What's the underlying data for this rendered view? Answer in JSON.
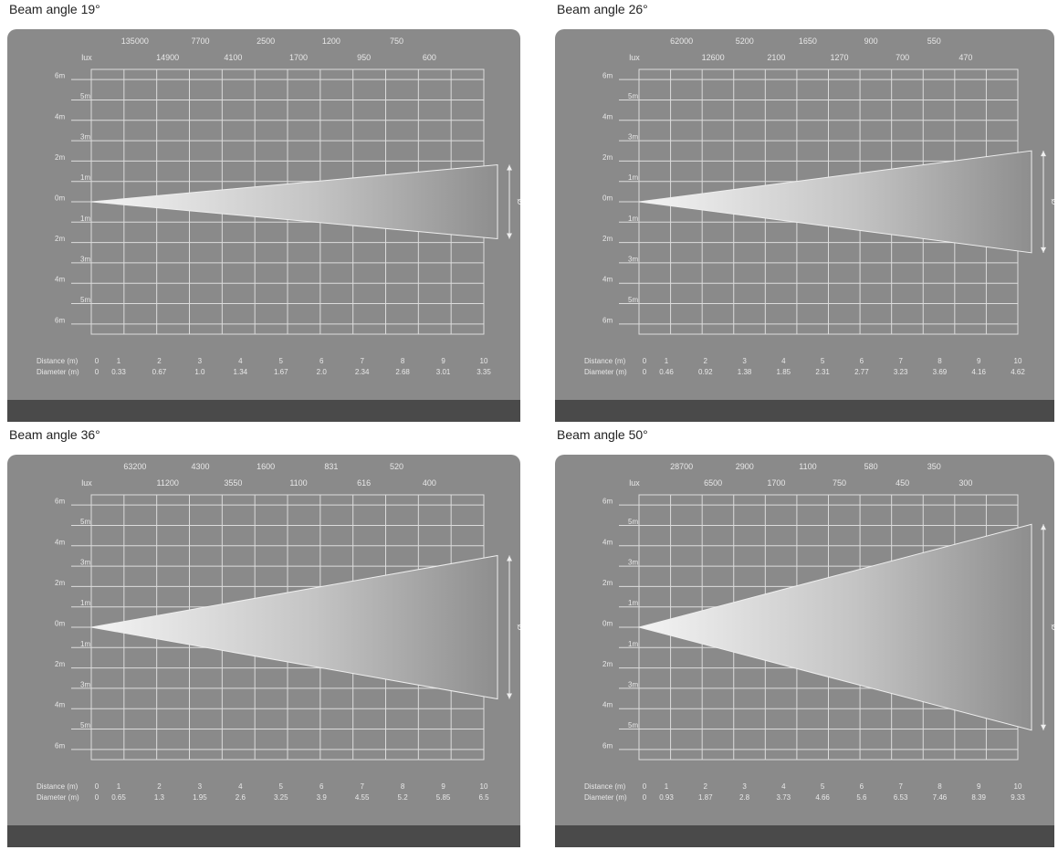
{
  "chart_data": [
    {
      "type": "area",
      "title": "Beam angle 19°",
      "lux_label": "lux",
      "lux_top": [
        "135000",
        "7700",
        "2500",
        "1200",
        "750"
      ],
      "lux_bottom": [
        "14900",
        "4100",
        "1700",
        "950",
        "600"
      ],
      "y_ticks": [
        "6m",
        "5m",
        "4m",
        "3m",
        "2m",
        "1m",
        "0m",
        "1m",
        "2m",
        "3m",
        "4m",
        "5m",
        "6m"
      ],
      "distance_label": "Distance (m)",
      "diameter_label": "Diameter (m)",
      "distances": [
        "0",
        "1",
        "2",
        "3",
        "4",
        "5",
        "6",
        "7",
        "8",
        "9",
        "10"
      ],
      "diameters": [
        "0",
        "0.33",
        "0.67",
        "1.0",
        "1.34",
        "1.67",
        "2.0",
        "2.34",
        "2.68",
        "3.01",
        "3.35"
      ],
      "diameter_values": [
        0,
        0.33,
        0.67,
        1.0,
        1.34,
        1.67,
        2.0,
        2.34,
        2.68,
        3.01,
        3.35
      ],
      "x_range": [
        0,
        10
      ],
      "y_range": [
        -6,
        6
      ],
      "symbol": "Ø"
    },
    {
      "type": "area",
      "title": "Beam angle 26°",
      "lux_label": "lux",
      "lux_top": [
        "62000",
        "5200",
        "1650",
        "900",
        "550"
      ],
      "lux_bottom": [
        "12600",
        "2100",
        "1270",
        "700",
        "470"
      ],
      "y_ticks": [
        "6m",
        "5m",
        "4m",
        "3m",
        "2m",
        "1m",
        "0m",
        "1m",
        "2m",
        "3m",
        "4m",
        "5m",
        "6m"
      ],
      "distance_label": "Distance (m)",
      "diameter_label": "Diameter (m)",
      "distances": [
        "0",
        "1",
        "2",
        "3",
        "4",
        "5",
        "6",
        "7",
        "8",
        "9",
        "10"
      ],
      "diameters": [
        "0",
        "0.46",
        "0.92",
        "1.38",
        "1.85",
        "2.31",
        "2.77",
        "3.23",
        "3.69",
        "4.16",
        "4.62"
      ],
      "diameter_values": [
        0,
        0.46,
        0.92,
        1.38,
        1.85,
        2.31,
        2.77,
        3.23,
        3.69,
        4.16,
        4.62
      ],
      "x_range": [
        0,
        10
      ],
      "y_range": [
        -6,
        6
      ],
      "symbol": "Ø"
    },
    {
      "type": "area",
      "title": "Beam angle 36°",
      "lux_label": "lux",
      "lux_top": [
        "63200",
        "4300",
        "1600",
        "831",
        "520"
      ],
      "lux_bottom": [
        "11200",
        "3550",
        "1100",
        "616",
        "400"
      ],
      "y_ticks": [
        "6m",
        "5m",
        "4m",
        "3m",
        "2m",
        "1m",
        "0m",
        "1m",
        "2m",
        "3m",
        "4m",
        "5m",
        "6m"
      ],
      "distance_label": "Distance (m)",
      "diameter_label": "Diameter (m)",
      "distances": [
        "0",
        "1",
        "2",
        "3",
        "4",
        "5",
        "6",
        "7",
        "8",
        "9",
        "10"
      ],
      "diameters": [
        "0",
        "0.65",
        "1.3",
        "1.95",
        "2.6",
        "3.25",
        "3.9",
        "4.55",
        "5.2",
        "5.85",
        "6.5"
      ],
      "diameter_values": [
        0,
        0.65,
        1.3,
        1.95,
        2.6,
        3.25,
        3.9,
        4.55,
        5.2,
        5.85,
        6.5
      ],
      "x_range": [
        0,
        10
      ],
      "y_range": [
        -6,
        6
      ],
      "symbol": "Ø"
    },
    {
      "type": "area",
      "title": "Beam angle 50°",
      "lux_label": "lux",
      "lux_top": [
        "28700",
        "2900",
        "1100",
        "580",
        "350"
      ],
      "lux_bottom": [
        "6500",
        "1700",
        "750",
        "450",
        "300"
      ],
      "y_ticks": [
        "6m",
        "5m",
        "4m",
        "3m",
        "2m",
        "1m",
        "0m",
        "1m",
        "2m",
        "3m",
        "4m",
        "5m",
        "6m"
      ],
      "distance_label": "Distance (m)",
      "diameter_label": "Diameter (m)",
      "distances": [
        "0",
        "1",
        "2",
        "3",
        "4",
        "5",
        "6",
        "7",
        "8",
        "9",
        "10"
      ],
      "diameters": [
        "0",
        "0.93",
        "1.87",
        "2.8",
        "3.73",
        "4.66",
        "5.6",
        "6.53",
        "7.46",
        "8.39",
        "9.33"
      ],
      "diameter_values": [
        0,
        0.93,
        1.87,
        2.8,
        3.73,
        4.66,
        5.6,
        6.53,
        7.46,
        8.39,
        9.33
      ],
      "x_range": [
        0,
        10
      ],
      "y_range": [
        -6,
        6
      ],
      "symbol": "Ø"
    }
  ]
}
